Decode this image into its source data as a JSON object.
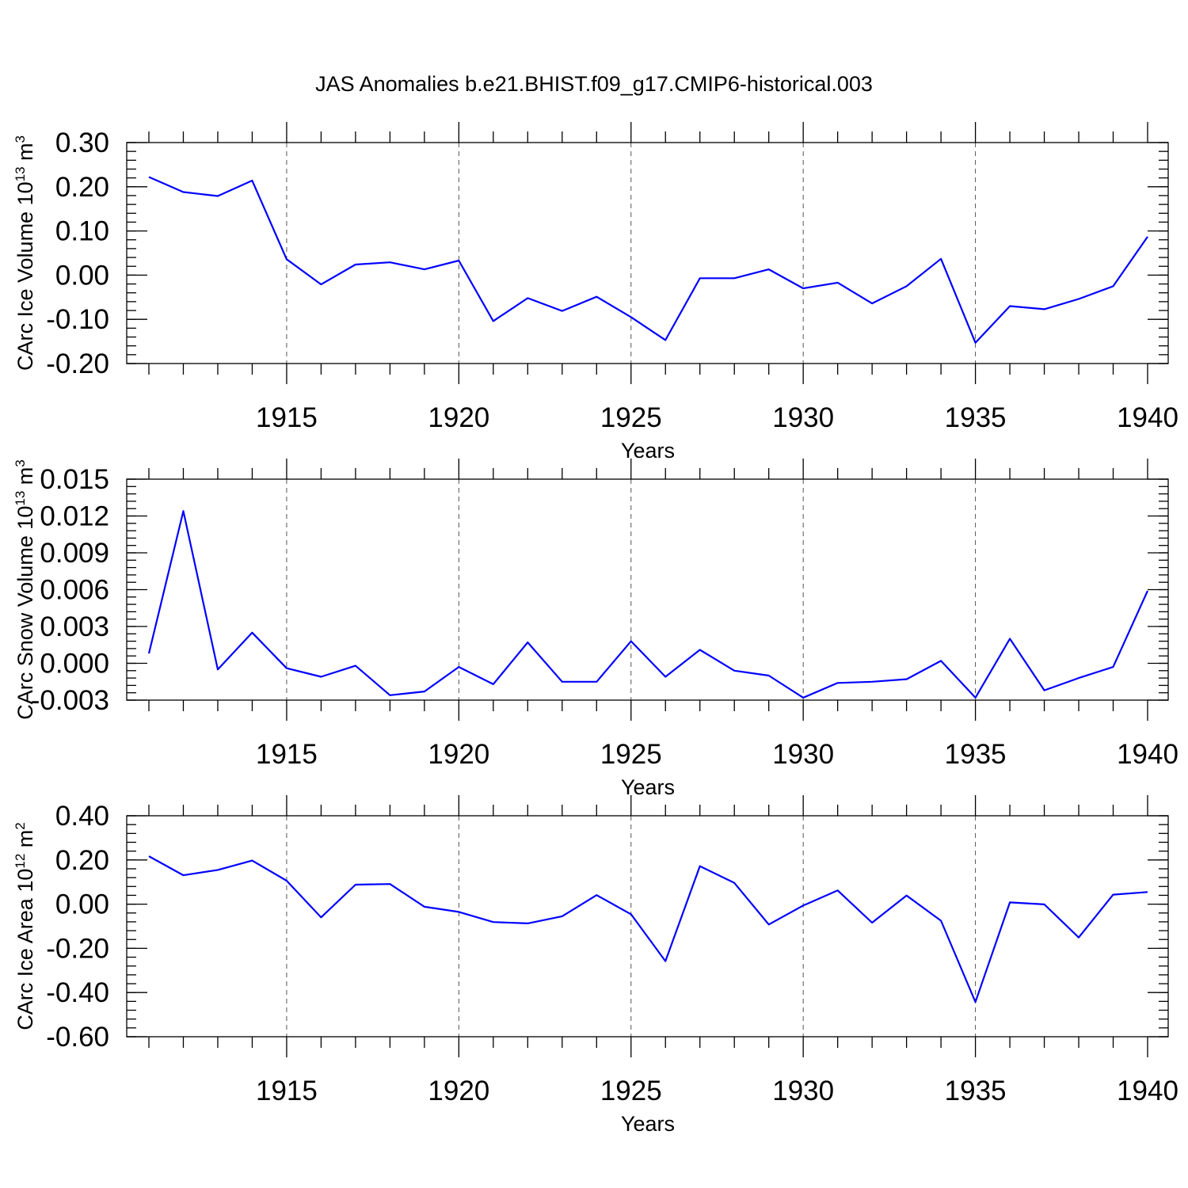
{
  "title": "JAS Anomalies b.e21.BHIST.f09_g17.CMIP6-historical.003",
  "colors": {
    "series": "#0000ff",
    "grid": "#555555",
    "axis": "#000000"
  },
  "chart_data": [
    {
      "type": "line",
      "ylabel": {
        "text": "CArc Ice Volume 10",
        "sup": "13",
        "unit": " m",
        "unit_sup": "3"
      },
      "xlabel": "Years",
      "xlim": [
        1911,
        1940
      ],
      "ylim": [
        -0.2,
        0.3
      ],
      "x_ticks": [
        1915,
        1920,
        1925,
        1930,
        1935,
        1940
      ],
      "x_tick_labels": [
        "1915",
        "1920",
        "1925",
        "1930",
        "1935",
        "1940"
      ],
      "y_ticks": [
        -0.2,
        -0.1,
        0.0,
        0.1,
        0.2,
        0.3
      ],
      "y_tick_labels": [
        "-0.20",
        "-0.10",
        "0.00",
        "0.10",
        "0.20",
        "0.30"
      ],
      "y_minor_step": 0.02,
      "grid": "dashed vertical lines at major x ticks",
      "x": [
        1911,
        1912,
        1913,
        1914,
        1915,
        1916,
        1917,
        1918,
        1919,
        1920,
        1921,
        1922,
        1923,
        1924,
        1925,
        1926,
        1927,
        1928,
        1929,
        1930,
        1931,
        1932,
        1933,
        1934,
        1935,
        1936,
        1937,
        1938,
        1939,
        1940
      ],
      "series": [
        {
          "values": [
            0.222,
            0.188,
            0.179,
            0.214,
            0.036,
            -0.021,
            0.024,
            0.029,
            0.013,
            0.033,
            -0.104,
            -0.052,
            -0.081,
            -0.049,
            -0.095,
            -0.147,
            -0.007,
            -0.007,
            0.013,
            -0.03,
            -0.017,
            -0.064,
            -0.025,
            0.037,
            -0.153,
            -0.07,
            -0.077,
            -0.054,
            -0.025,
            0.087
          ]
        }
      ]
    },
    {
      "type": "line",
      "ylabel": {
        "text": "CArc Snow Volume 10",
        "sup": "13",
        "unit": " m",
        "unit_sup": "3"
      },
      "xlabel": "Years",
      "xlim": [
        1911,
        1940
      ],
      "ylim": [
        -0.003,
        0.015
      ],
      "x_ticks": [
        1915,
        1920,
        1925,
        1930,
        1935,
        1940
      ],
      "x_tick_labels": [
        "1915",
        "1920",
        "1925",
        "1930",
        "1935",
        "1940"
      ],
      "y_ticks": [
        -0.003,
        0.0,
        0.003,
        0.006,
        0.009,
        0.012,
        0.015
      ],
      "y_tick_labels": [
        "-0.003",
        "0.000",
        "0.003",
        "0.006",
        "0.009",
        "0.012",
        "0.015"
      ],
      "y_minor_step": 0.0006,
      "grid": "dashed vertical lines at major x ticks",
      "x": [
        1911,
        1912,
        1913,
        1914,
        1915,
        1916,
        1917,
        1918,
        1919,
        1920,
        1921,
        1922,
        1923,
        1924,
        1925,
        1926,
        1927,
        1928,
        1929,
        1930,
        1931,
        1932,
        1933,
        1934,
        1935,
        1936,
        1937,
        1938,
        1939,
        1940
      ],
      "series": [
        {
          "values": [
            0.0008,
            0.0124,
            -0.0005,
            0.0025,
            -0.0004,
            -0.0011,
            -0.0002,
            -0.0026,
            -0.0023,
            -0.0003,
            -0.0017,
            0.0017,
            -0.0015,
            -0.0015,
            0.0018,
            -0.0011,
            0.0011,
            -0.0006,
            -0.001,
            -0.0028,
            -0.0016,
            -0.0015,
            -0.0013,
            0.0002,
            -0.0028,
            0.002,
            -0.0022,
            -0.0012,
            -0.0003,
            0.0059
          ]
        }
      ]
    },
    {
      "type": "line",
      "ylabel": {
        "text": "CArc Ice Area 10",
        "sup": "12",
        "unit": " m",
        "unit_sup": "2"
      },
      "xlabel": "Years",
      "xlim": [
        1911,
        1940
      ],
      "ylim": [
        -0.6,
        0.4
      ],
      "x_ticks": [
        1915,
        1920,
        1925,
        1930,
        1935,
        1940
      ],
      "x_tick_labels": [
        "1915",
        "1920",
        "1925",
        "1930",
        "1935",
        "1940"
      ],
      "y_ticks": [
        -0.6,
        -0.4,
        -0.2,
        0.0,
        0.2,
        0.4
      ],
      "y_tick_labels": [
        "-0.60",
        "-0.40",
        "-0.20",
        "0.00",
        "0.20",
        "0.40"
      ],
      "y_minor_step": 0.04,
      "grid": "dashed vertical lines at major x ticks",
      "x": [
        1911,
        1912,
        1913,
        1914,
        1915,
        1916,
        1917,
        1918,
        1919,
        1920,
        1921,
        1922,
        1923,
        1924,
        1925,
        1926,
        1927,
        1928,
        1929,
        1930,
        1931,
        1932,
        1933,
        1934,
        1935,
        1936,
        1937,
        1938,
        1939,
        1940
      ],
      "series": [
        {
          "values": [
            0.217,
            0.131,
            0.155,
            0.197,
            0.106,
            -0.06,
            0.088,
            0.091,
            -0.012,
            -0.035,
            -0.081,
            -0.087,
            -0.055,
            0.041,
            -0.046,
            -0.258,
            0.172,
            0.096,
            -0.092,
            -0.006,
            0.062,
            -0.084,
            0.039,
            -0.075,
            -0.443,
            0.008,
            -0.001,
            -0.151,
            0.043,
            0.055
          ]
        }
      ]
    }
  ]
}
